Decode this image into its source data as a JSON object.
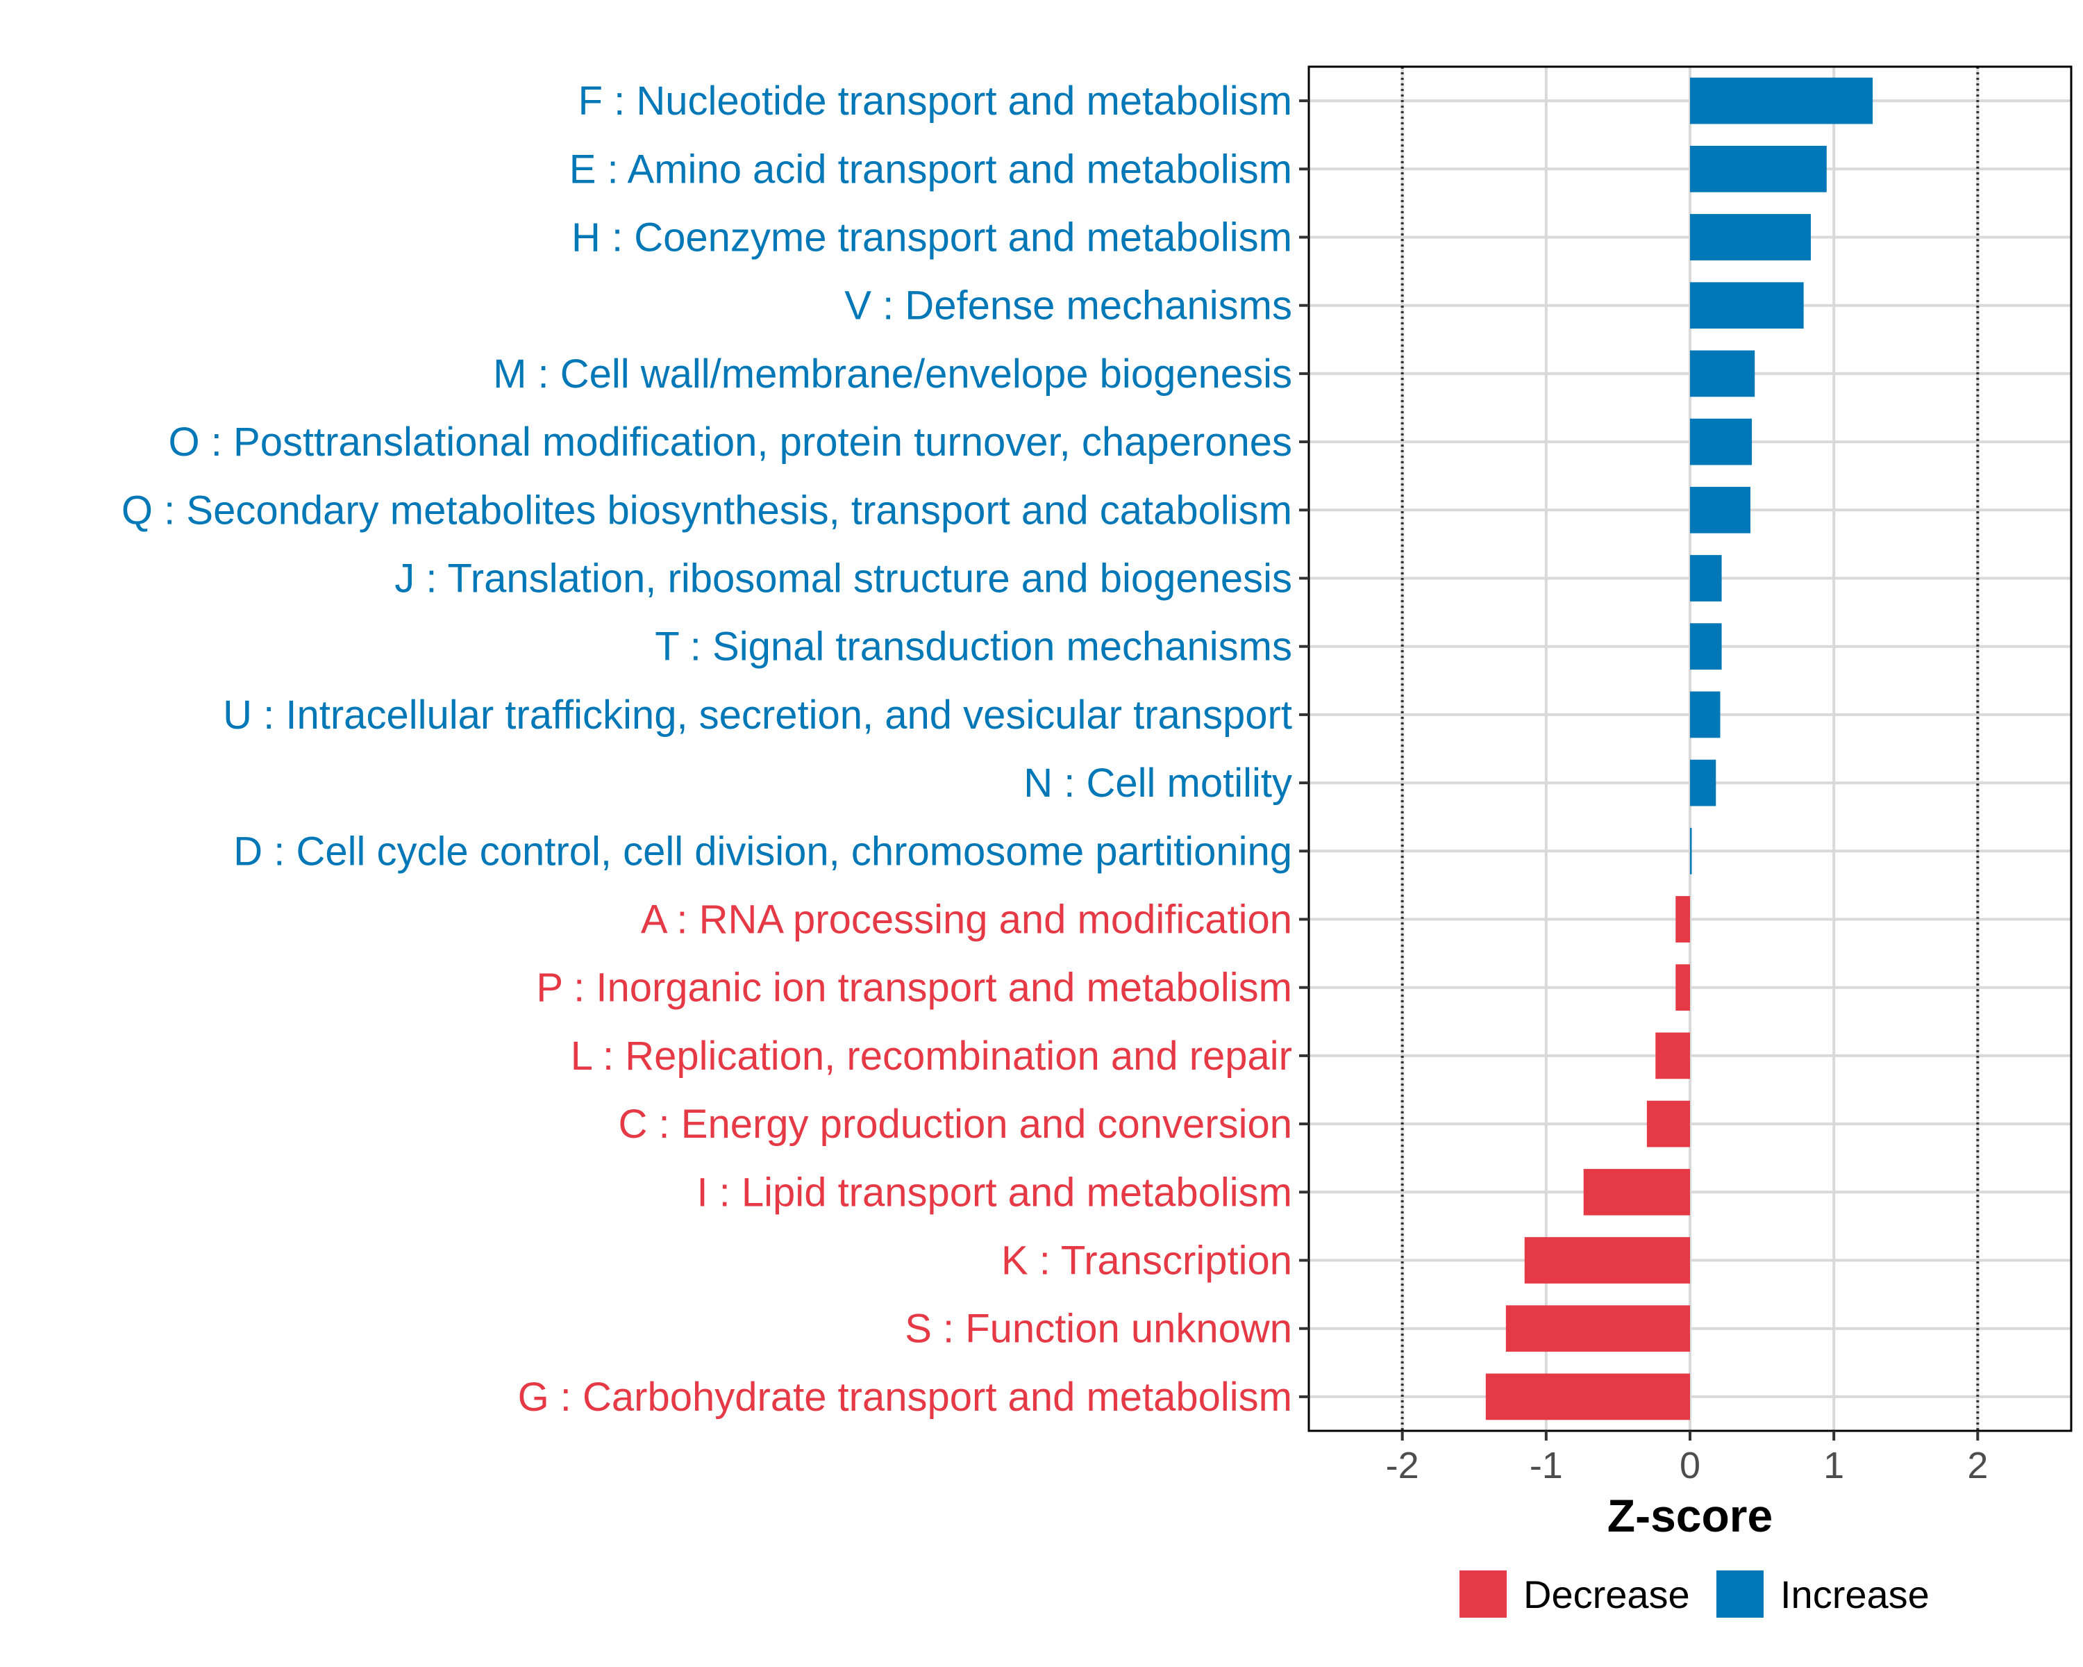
{
  "chart_data": {
    "type": "bar",
    "orientation": "horizontal",
    "xlabel": "Z-score",
    "xlim": [
      -2.65,
      2.65
    ],
    "xticks": [
      -2,
      -1,
      0,
      1,
      2
    ],
    "xtick_labels": [
      "-2",
      "-1",
      "0",
      "1",
      "2"
    ],
    "reference_lines": [
      -2,
      2
    ],
    "grid": true,
    "legend_position": "bottom",
    "colors": {
      "Decrease": "#e63946",
      "Increase": "#0077b6"
    },
    "legend": [
      {
        "name": "Decrease",
        "color": "#e63946"
      },
      {
        "name": "Increase",
        "color": "#0077b6"
      }
    ],
    "categories": [
      "F : Nucleotide transport and metabolism",
      "E : Amino acid transport and metabolism",
      "H : Coenzyme transport and metabolism",
      "V : Defense mechanisms",
      "M : Cell wall/membrane/envelope biogenesis",
      "O : Posttranslational modification, protein turnover, chaperones",
      "Q : Secondary metabolites biosynthesis, transport and catabolism",
      "J : Translation, ribosomal structure and biogenesis",
      "T : Signal transduction mechanisms",
      "U : Intracellular trafficking, secretion, and vesicular transport",
      "N : Cell motility",
      "D : Cell cycle control, cell division, chromosome partitioning",
      "A : RNA processing and modification",
      "P : Inorganic ion transport and metabolism",
      "L : Replication, recombination and repair",
      "C : Energy production and conversion",
      "I : Lipid transport and metabolism",
      "K : Transcription",
      "S : Function unknown",
      "G : Carbohydrate transport and metabolism"
    ],
    "values": [
      1.27,
      0.95,
      0.84,
      0.79,
      0.45,
      0.43,
      0.42,
      0.22,
      0.22,
      0.21,
      0.18,
      0.01,
      -0.1,
      -0.1,
      -0.24,
      -0.3,
      -0.74,
      -1.15,
      -1.28,
      -1.42
    ],
    "groups": [
      "Increase",
      "Increase",
      "Increase",
      "Increase",
      "Increase",
      "Increase",
      "Increase",
      "Increase",
      "Increase",
      "Increase",
      "Increase",
      "Increase",
      "Decrease",
      "Decrease",
      "Decrease",
      "Decrease",
      "Decrease",
      "Decrease",
      "Decrease",
      "Decrease"
    ]
  }
}
